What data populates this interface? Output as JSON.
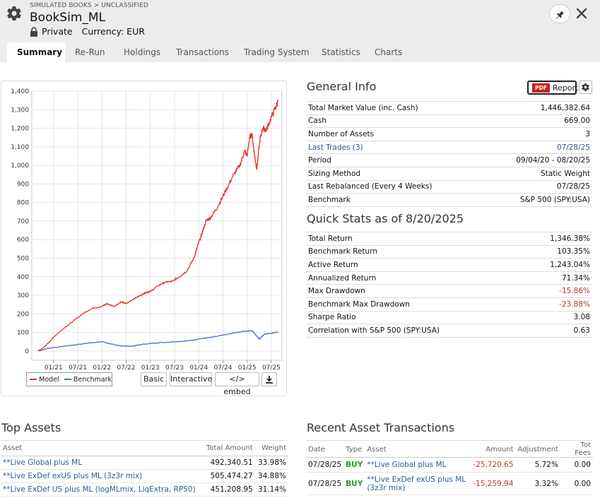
{
  "header": {
    "breadcrumb": "SIMULATED BOOKS > UNCLASSIFIED",
    "title": "BookSim_ML",
    "privacy": "Private",
    "currency": "Currency: EUR"
  },
  "tabs": [
    "Summary",
    "Re-Run",
    "Holdings",
    "Transactions",
    "Trading System",
    "Statistics",
    "Charts"
  ],
  "active_tab": "Summary",
  "chart_controls": {
    "legend_model": "Model",
    "legend_benchmark": "Benchmark",
    "basic": "Basic",
    "interactive": "Interactive",
    "embed": "</> embed"
  },
  "colors": {
    "model": "#e8332d",
    "benchmark": "#4472c4"
  },
  "chart_data": {
    "type": "line",
    "title": "",
    "xlabel": "",
    "ylabel": "",
    "ylim": [
      -50,
      1400
    ],
    "yticks": [
      "0",
      "100",
      "200",
      "300",
      "400",
      "500",
      "600",
      "700",
      "800",
      "900",
      "1,000",
      "1,100",
      "1,200",
      "1,300",
      "1,400"
    ],
    "xticks": [
      "01/21",
      "07/21",
      "01/22",
      "07/22",
      "01/23",
      "07/23",
      "01/24",
      "07/24",
      "01/25",
      "07/25"
    ],
    "grid": true,
    "legend": "bottom-left",
    "series": [
      {
        "name": "Model",
        "x": [
          2020.68,
          2020.8,
          2020.9,
          2021.0,
          2021.2,
          2021.4,
          2021.6,
          2021.8,
          2022.0,
          2022.1,
          2022.25,
          2022.4,
          2022.5,
          2022.65,
          2022.8,
          2022.9,
          2023.0,
          2023.15,
          2023.3,
          2023.45,
          2023.6,
          2023.75,
          2023.9,
          2023.97,
          2024.05,
          2024.15,
          2024.25,
          2024.4,
          2024.55,
          2024.7,
          2024.85,
          2024.95,
          2025.0,
          2025.05,
          2025.1,
          2025.15,
          2025.2,
          2025.26,
          2025.32,
          2025.4,
          2025.5,
          2025.6,
          2025.64
        ],
        "y": [
          0,
          20,
          45,
          75,
          120,
          160,
          200,
          230,
          240,
          255,
          240,
          265,
          255,
          280,
          300,
          315,
          320,
          350,
          370,
          375,
          400,
          430,
          500,
          560,
          620,
          700,
          720,
          780,
          860,
          940,
          1000,
          1080,
          1050,
          1150,
          1170,
          1060,
          980,
          1130,
          1200,
          1190,
          1260,
          1320,
          1346
        ]
      },
      {
        "name": "Benchmark",
        "x": [
          2020.68,
          2020.9,
          2021.2,
          2021.5,
          2021.8,
          2022.0,
          2022.3,
          2022.6,
          2022.9,
          2023.2,
          2023.5,
          2023.8,
          2024.0,
          2024.3,
          2024.6,
          2024.9,
          2025.1,
          2025.2,
          2025.26,
          2025.35,
          2025.5,
          2025.64
        ],
        "y": [
          0,
          15,
          25,
          35,
          45,
          50,
          30,
          25,
          38,
          45,
          50,
          55,
          65,
          75,
          90,
          105,
          110,
          80,
          65,
          90,
          95,
          103
        ]
      }
    ]
  },
  "general_info": {
    "title": "General Info",
    "report_label": "Report",
    "pdf_label": "PDF",
    "rows": [
      {
        "label": "Total Market Value (inc. Cash)",
        "value": "1,446,382.64"
      },
      {
        "label": "Cash",
        "value": "669.00"
      },
      {
        "label": "Number of Assets",
        "value": "3"
      },
      {
        "label": "Last Trades (3)",
        "value": "07/28/25"
      },
      {
        "label": "Period",
        "value": "09/04/20 - 08/20/25"
      },
      {
        "label": "Sizing Method",
        "value": "Static Weight"
      },
      {
        "label": "Last Rebalanced (Every 4 Weeks)",
        "value": "07/28/25"
      },
      {
        "label": "Benchmark",
        "value": "S&P 500 (SPY:USA)"
      }
    ]
  },
  "quick_stats": {
    "title": "Quick Stats as of 8/20/2025",
    "rows": [
      {
        "label": "Total Return",
        "value": "1,346.38%"
      },
      {
        "label": "Benchmark Return",
        "value": "103.35%"
      },
      {
        "label": "Active Return",
        "value": "1,243.04%"
      },
      {
        "label": "Annualized Return",
        "value": "71.34%"
      },
      {
        "label": "Max Drawdown",
        "value": "-15.86%"
      },
      {
        "label": "Benchmark Max Drawdown",
        "value": "-23.88%"
      },
      {
        "label": "Sharpe Ratio",
        "value": "3.08"
      },
      {
        "label": "Correlation with S&P 500 (SPY:USA)",
        "value": "0.63"
      }
    ]
  },
  "top_assets": {
    "title": "Top Assets",
    "columns": [
      "Asset",
      "Total Amount",
      "Weight"
    ],
    "rows": [
      {
        "asset": "**Live Global plus ML",
        "amount": "492,340.51",
        "weight": "33.98%"
      },
      {
        "asset": "**Live ExDef exUS plus ML (3z3r mix)",
        "amount": "505,474.27",
        "weight": "34.88%"
      },
      {
        "asset": "**Live ExDef US plus ML (logMLmix, LiqExtra, RP50)",
        "amount": "451,208.95",
        "weight": "31.14%"
      }
    ]
  },
  "recent_tx": {
    "title": "Recent Asset Transactions",
    "columns": [
      "Date",
      "Type",
      "Asset",
      "Amount",
      "Adjustment",
      "Tot Fees"
    ],
    "rows": [
      {
        "date": "07/28/25",
        "type": "BUY",
        "asset": "**Live Global plus ML",
        "amount": "-25,720.65",
        "adj": "5.72%",
        "fees": "0.00"
      },
      {
        "date": "07/28/25",
        "type": "BUY",
        "asset": "**Live ExDef exUS plus ML (3z3r mix)",
        "amount": "-15,259.94",
        "adj": "3.32%",
        "fees": "0.00"
      }
    ]
  }
}
